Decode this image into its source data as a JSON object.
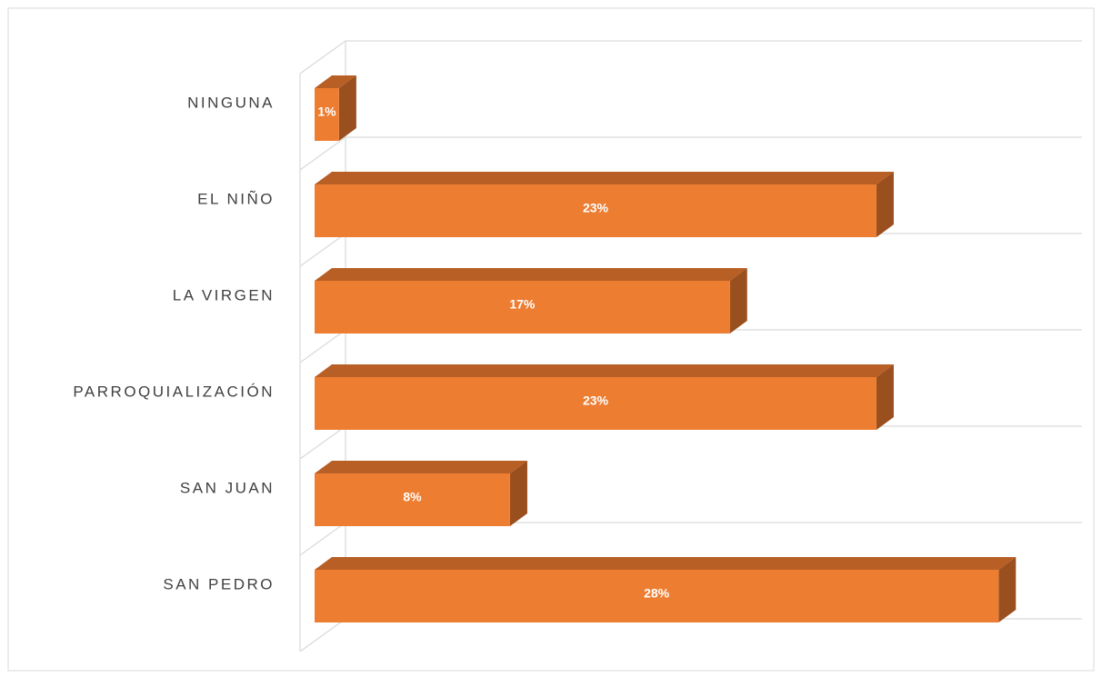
{
  "chart_data": {
    "type": "bar3d",
    "categories": [
      "NINGUNA",
      "EL NIÑO",
      "LA VIRGEN",
      "PARROQUIALIZACIÓN",
      "SAN JUAN",
      "SAN PEDRO"
    ],
    "values": [
      1,
      23,
      17,
      23,
      8,
      28
    ],
    "value_labels": [
      "1%",
      "23%",
      "17%",
      "23%",
      "8%",
      "28%"
    ],
    "color": "#ed7d31",
    "xlim": [
      0,
      30
    ]
  }
}
